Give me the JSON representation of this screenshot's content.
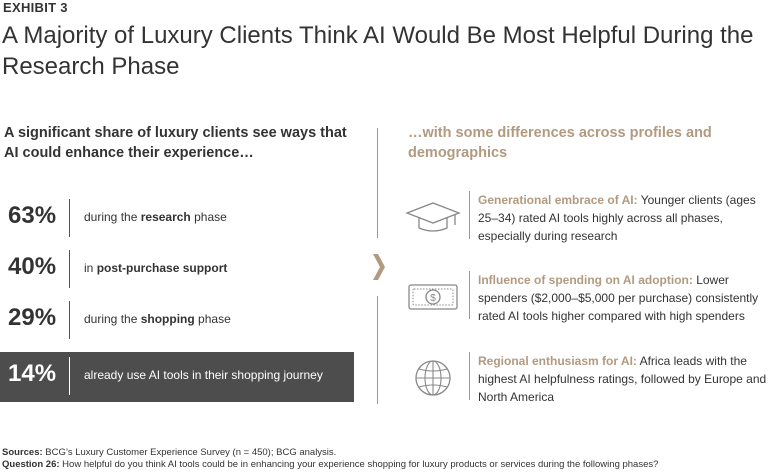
{
  "header": {
    "exhibit": "EXHIBIT 3",
    "title": "A Majority of Luxury Clients Think AI Would Be Most Helpful During the Research Phase"
  },
  "left": {
    "heading": "A significant share of luxury clients see ways that AI could enhance their experience…"
  },
  "right": {
    "heading": "…with some differences across profiles and demographics",
    "insights": [
      {
        "icon": "graduation-cap-icon",
        "lead": "Generational embrace of AI:",
        "text": " Younger clients (ages 25–34) rated AI tools highly across all phases, especially during research"
      },
      {
        "icon": "dollar-bill-icon",
        "lead": "Influence of spending on AI adoption:",
        "text": " Lower spenders ($2,000–$5,000 per purchase) consistently rated AI tools higher compared with high spenders"
      },
      {
        "icon": "globe-icon",
        "lead": "Regional enthusiasm for AI:",
        "text": " Africa leads with the highest AI helpfulness ratings, followed by Europe and North America"
      }
    ]
  },
  "chart_data": {
    "type": "table",
    "rows": [
      {
        "label": "63%",
        "value": 63,
        "pre": "during the ",
        "bold": "research",
        "post": " phase",
        "highlight": false
      },
      {
        "label": "40%",
        "value": 40,
        "pre": "in ",
        "bold": "post-purchase support",
        "post": "",
        "highlight": false
      },
      {
        "label": "29%",
        "value": 29,
        "pre": "during the ",
        "bold": "shopping",
        "post": " phase",
        "highlight": false
      },
      {
        "label": "14%",
        "value": 14,
        "pre": "already use AI tools in their shopping journey",
        "bold": "",
        "post": "",
        "highlight": true
      }
    ]
  },
  "footer": {
    "sources_label": "Sources:",
    "sources_text": " BCG’s Luxury Customer Experience Survey (n = 450); BCG analysis.",
    "question_label": "Question 26:",
    "question_text": " How helpful do you think AI tools could be in enhancing your experience shopping for luxury products or services during the following phases?"
  },
  "colors": {
    "accent": "#b29a80",
    "text": "#333333",
    "highlight_bg": "#4d4d4d"
  }
}
